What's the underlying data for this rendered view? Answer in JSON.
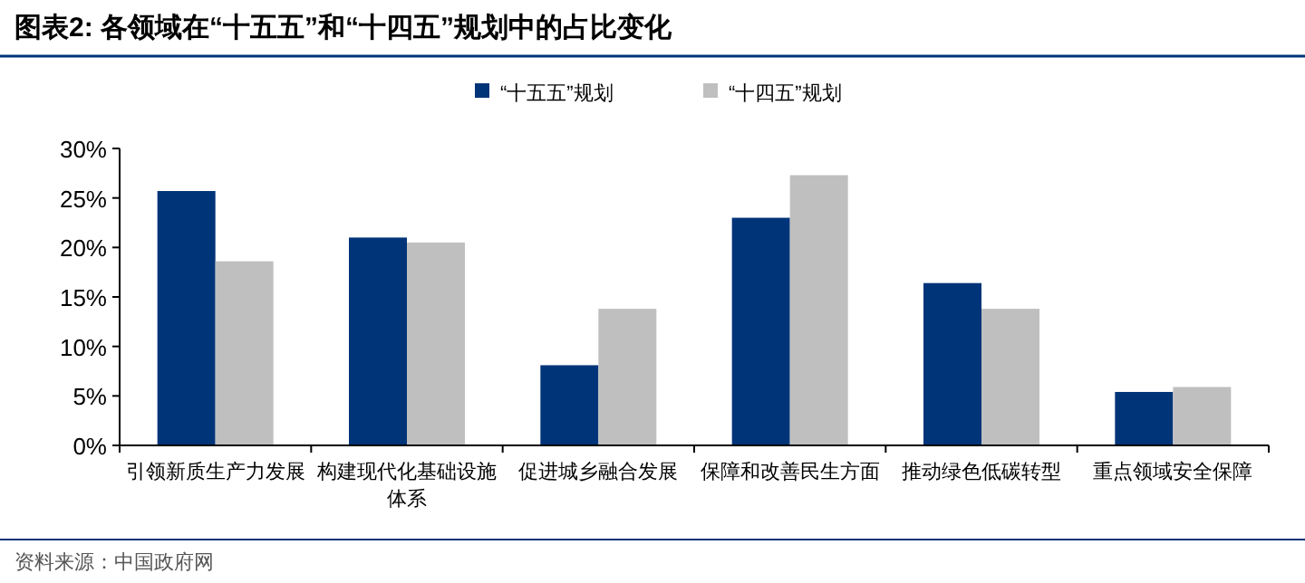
{
  "chart_data": {
    "type": "bar",
    "title": "图表2:  各领域在“十五五”和“十四五”规划中的占比变化",
    "categories": [
      "引领新质生产力发展",
      "构建现代化基础设施体系",
      "促进城乡融合发展",
      "保障和改善民生方面",
      "推动绿色低碳转型",
      "重点领域安全保障"
    ],
    "series": [
      {
        "name": "“十五五”规划",
        "color": "#003478",
        "values": [
          25.7,
          21.0,
          8.1,
          23.0,
          16.4,
          5.4
        ]
      },
      {
        "name": "“十四五”规划",
        "color": "#bfbfbf",
        "values": [
          18.6,
          20.5,
          13.8,
          27.3,
          13.8,
          5.9
        ]
      }
    ],
    "ylim": [
      0,
      30
    ],
    "yticks": [
      {
        "value": 0,
        "label": "0%"
      },
      {
        "value": 5,
        "label": "5%"
      },
      {
        "value": 10,
        "label": "10%"
      },
      {
        "value": 15,
        "label": "15%"
      },
      {
        "value": 20,
        "label": "20%"
      },
      {
        "value": 25,
        "label": "25%"
      },
      {
        "value": 30,
        "label": "30%"
      }
    ],
    "grid": false,
    "legend": "top",
    "annotations": [
      "资料来源：中国政府网"
    ]
  }
}
